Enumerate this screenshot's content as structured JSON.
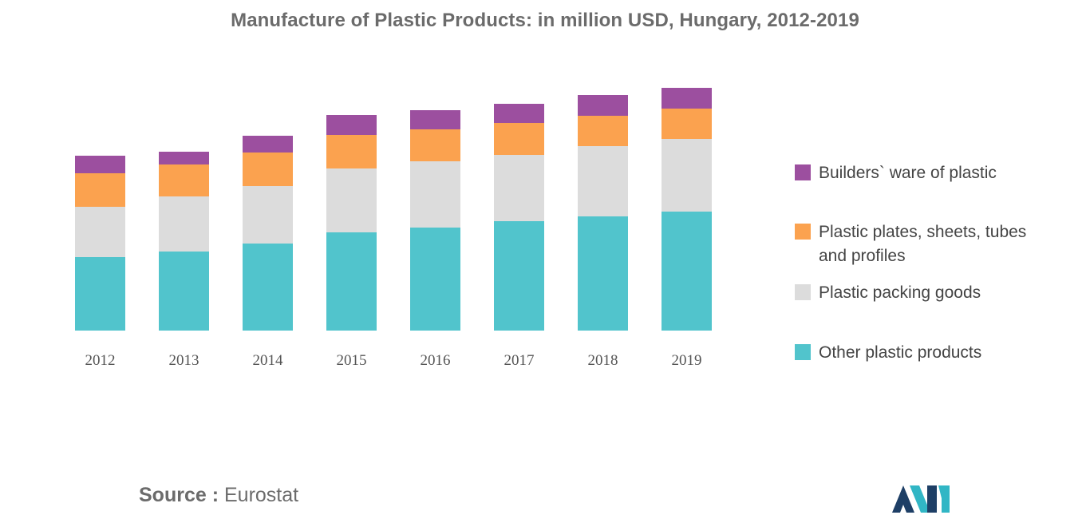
{
  "chart_data": {
    "type": "bar",
    "stacked": true,
    "title": "Manufacture of Plastic Products: in million USD, Hungary, 2012-2019",
    "xlabel": "",
    "ylabel": "",
    "categories": [
      "2012",
      "2013",
      "2014",
      "2015",
      "2016",
      "2017",
      "2018",
      "2019"
    ],
    "series": [
      {
        "name": "Other plastic products",
        "color": "#51c4cc",
        "values": [
          92,
          99,
          109,
          123,
          129,
          137,
          143,
          149
        ]
      },
      {
        "name": "Plastic packing goods",
        "color": "#dcdcdc",
        "values": [
          63,
          69,
          72,
          80,
          83,
          83,
          88,
          91
        ]
      },
      {
        "name": "Plastic plates, sheets, tubes and profiles",
        "color": "#fba24f",
        "values": [
          42,
          40,
          42,
          42,
          40,
          40,
          38,
          38
        ]
      },
      {
        "name": "Builders` ware of plastic",
        "color": "#9c4f9f",
        "values": [
          22,
          16,
          21,
          25,
          24,
          24,
          26,
          26
        ]
      }
    ],
    "ylim": [
      0,
      320
    ],
    "grid": false,
    "legend_position": "right"
  },
  "legend": {
    "items": [
      {
        "label": "Builders` ware of plastic",
        "color": "#9c4f9f"
      },
      {
        "label": "Plastic plates, sheets, tubes and profiles",
        "color": "#fba24f"
      },
      {
        "label": "Plastic packing goods",
        "color": "#dcdcdc"
      },
      {
        "label": "Other plastic products",
        "color": "#51c4cc"
      }
    ]
  },
  "source": {
    "label": "Source :",
    "value": "Eurostat"
  },
  "logo": {
    "colors": [
      "#1e3f66",
      "#31b6c5"
    ]
  }
}
